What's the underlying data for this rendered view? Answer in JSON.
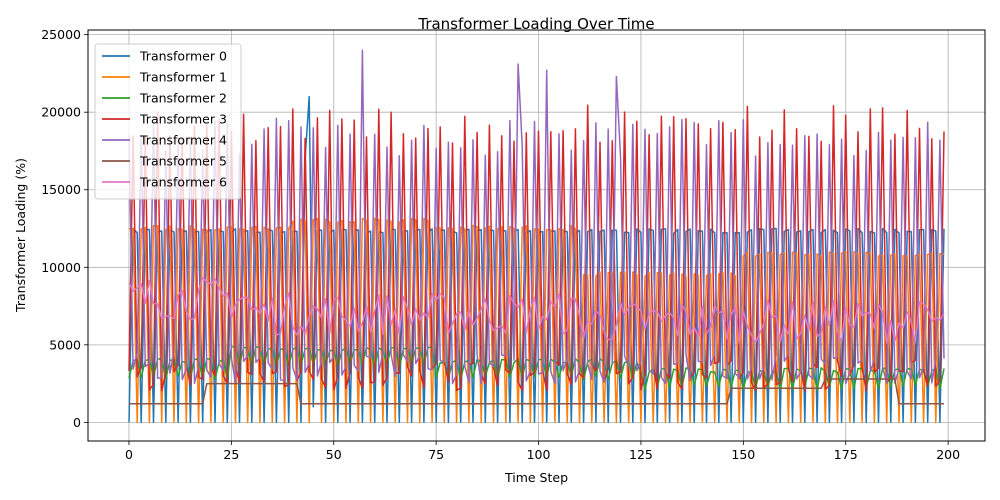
{
  "chart_data": {
    "type": "line",
    "title": "Transformer Loading Over Time",
    "xlabel": "Time Step",
    "ylabel": "Transformer Loading (%)",
    "xlim": [
      -10,
      209
    ],
    "ylim": [
      -1200,
      25300
    ],
    "xticks": [
      0,
      25,
      50,
      75,
      100,
      125,
      150,
      175,
      200
    ],
    "yticks": [
      0,
      5000,
      10000,
      15000,
      20000,
      25000
    ],
    "grid": true,
    "legend": "top-left",
    "n_steps": 200,
    "series": [
      {
        "name": "Transformer 0",
        "color": "#1f77b4",
        "pattern": "square",
        "high": 12500,
        "low": 0,
        "onset": 0,
        "period": 3,
        "overrides": [
          {
            "x": 43,
            "y": 17000
          },
          {
            "x": 44,
            "y": 21000
          },
          {
            "x": 45,
            "y": 1000
          }
        ]
      },
      {
        "name": "Transformer 1",
        "color": "#ff7f0e",
        "pattern": "square",
        "high": 12900,
        "low": 0,
        "onset": 1,
        "period": 3,
        "segments": [
          {
            "from": 0,
            "to": 40,
            "high": 12700
          },
          {
            "from": 40,
            "to": 75,
            "high": 13200
          },
          {
            "from": 75,
            "to": 110,
            "high": 12700
          },
          {
            "from": 110,
            "to": 150,
            "high": 9700
          },
          {
            "from": 150,
            "to": 200,
            "high": 11000
          }
        ]
      },
      {
        "name": "Transformer 2",
        "color": "#2ca02c",
        "pattern": "wave",
        "base": 3600,
        "amp": 800,
        "segments": [
          {
            "from": 0,
            "to": 25,
            "base": 3500
          },
          {
            "from": 25,
            "to": 75,
            "base": 4300
          },
          {
            "from": 75,
            "to": 125,
            "base": 3500
          },
          {
            "from": 125,
            "to": 200,
            "base": 2900
          }
        ]
      },
      {
        "name": "Transformer 3",
        "color": "#d62728",
        "pattern": "spike",
        "high": 20500,
        "low": 2000,
        "period": 3,
        "onset": 2
      },
      {
        "name": "Transformer 4",
        "color": "#9467bd",
        "pattern": "spike",
        "high": 19600,
        "low": 2500,
        "period": 3,
        "onset": 0,
        "overrides": [
          {
            "x": 57,
            "y": 24000
          },
          {
            "x": 95,
            "y": 23100
          },
          {
            "x": 102,
            "y": 22700
          },
          {
            "x": 119,
            "y": 22300
          }
        ]
      },
      {
        "name": "Transformer 5",
        "color": "#8c564b",
        "pattern": "steps",
        "steps": [
          {
            "from": 0,
            "to": 19,
            "y": 1200
          },
          {
            "from": 19,
            "to": 42,
            "y": 2500
          },
          {
            "from": 42,
            "to": 147,
            "y": 1200
          },
          {
            "from": 147,
            "to": 170,
            "y": 2200
          },
          {
            "from": 170,
            "to": 188,
            "y": 2800
          },
          {
            "from": 188,
            "to": 200,
            "y": 1200
          }
        ]
      },
      {
        "name": "Transformer 6",
        "color": "#e377c2",
        "pattern": "noise",
        "base": 6800,
        "amp": 1400,
        "segments": [
          {
            "from": 0,
            "to": 30,
            "base": 8000
          },
          {
            "from": 30,
            "to": 110,
            "base": 7000
          },
          {
            "from": 110,
            "to": 200,
            "base": 6500
          }
        ]
      }
    ]
  }
}
